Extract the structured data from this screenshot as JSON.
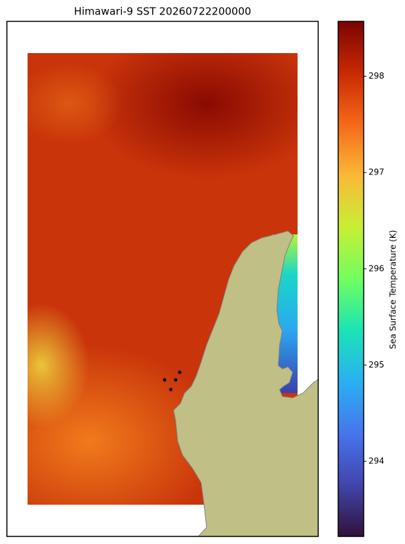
{
  "chart_data": {
    "type": "heatmap",
    "title": "Himawari-9 SST 20260722200000",
    "colorbar": {
      "label": "Sea Surface Temperature (K)",
      "lim": [
        293.22,
        298.57
      ],
      "ticks": [
        294,
        295,
        296,
        297,
        298
      ]
    }
  }
}
